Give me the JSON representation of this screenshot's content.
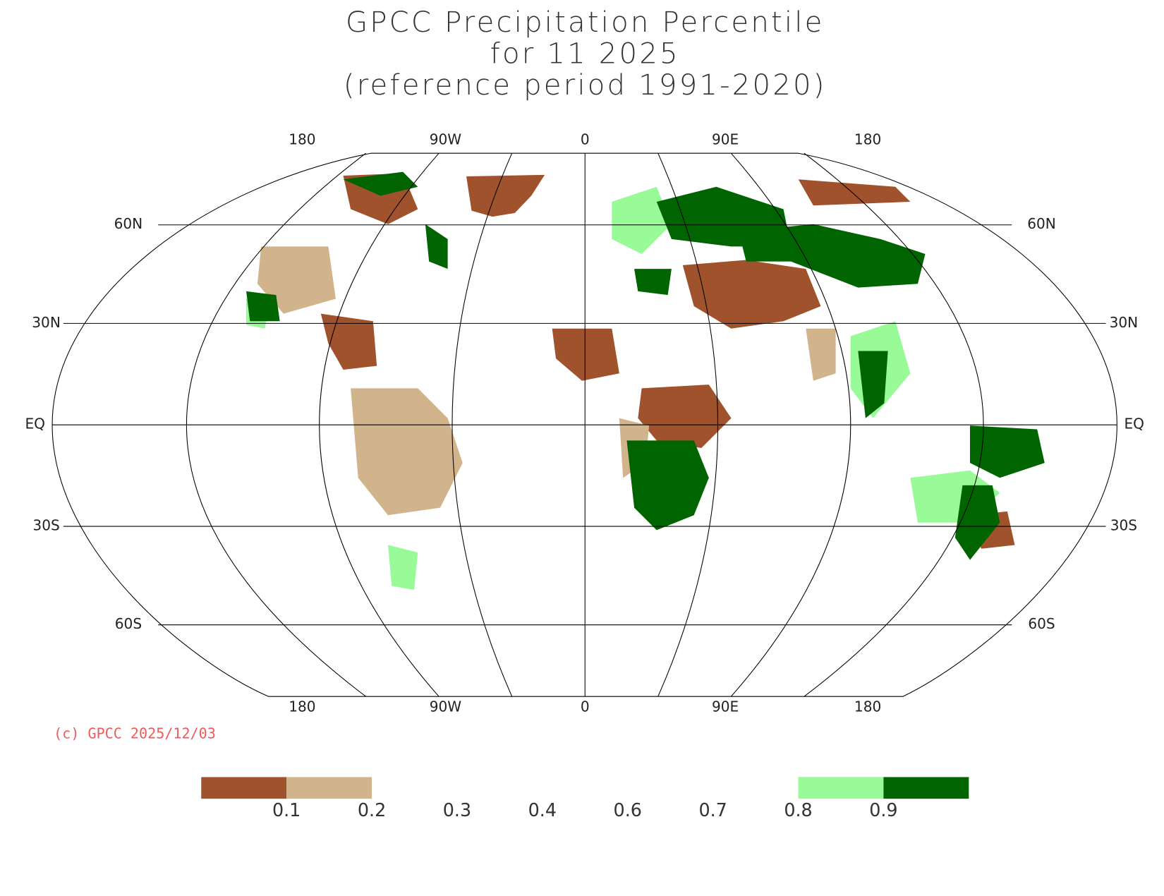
{
  "title": [
    "GPCC Precipitation Percentile",
    "for 11 2025",
    "(reference period 1991-2020)"
  ],
  "map": {
    "top_labels": [
      "180",
      "90W",
      "0",
      "90E",
      "180"
    ],
    "bottom_labels": [
      "180",
      "90W",
      "0",
      "90E",
      "180"
    ],
    "left_labels": [
      "60N",
      "30N",
      "EQ",
      "30S",
      "60S"
    ],
    "right_labels": [
      "60N",
      "30N",
      "EQ",
      "30S",
      "60S"
    ]
  },
  "copyright": "(c) GPCC 2025/12/03",
  "legend": {
    "ticks": [
      0.1,
      0.2,
      0.3,
      0.4,
      0.6,
      0.7,
      0.8,
      0.9
    ],
    "bins": [
      {
        "color": "#a0522d"
      },
      {
        "color": "#d2b48c"
      },
      {
        "color": "#98fb98"
      },
      {
        "color": "#006400"
      }
    ]
  }
}
